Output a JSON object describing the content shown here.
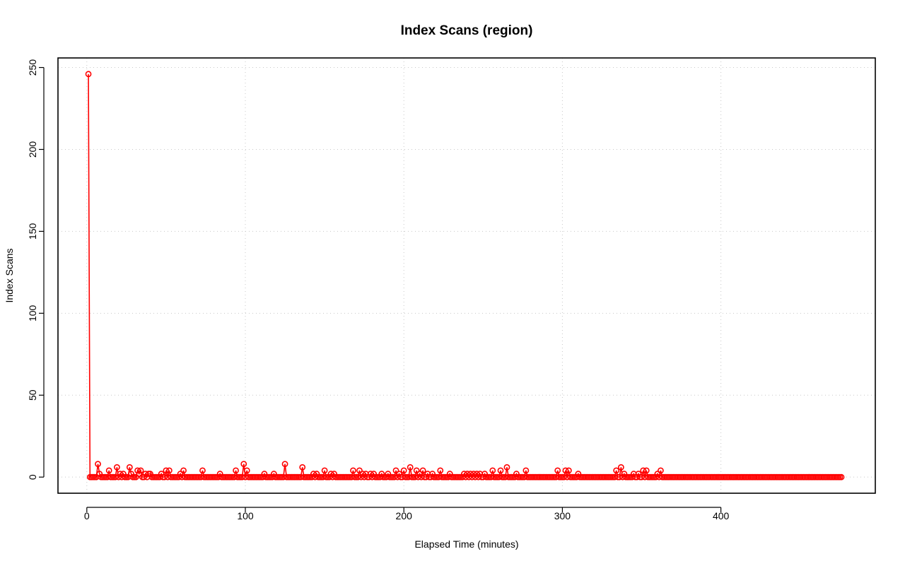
{
  "chart_data": {
    "type": "scatter",
    "title": "Index Scans (region)",
    "xlabel": "Elapsed Time (minutes)",
    "ylabel": "Index Scans",
    "xlim": [
      -18.2,
      497.4
    ],
    "ylim": [
      -9.84,
      255.84
    ],
    "xticks": [
      0,
      100,
      200,
      300,
      400
    ],
    "yticks": [
      0,
      50,
      100,
      150,
      200,
      250
    ],
    "grid": true,
    "color": "#ff0000",
    "series": [
      {
        "style": "points-and-line",
        "x_start": 1,
        "x_end": 476,
        "x_step": 1,
        "baseline": 0,
        "points": [
          [
            1,
            246
          ],
          [
            7,
            8
          ],
          [
            8,
            2
          ],
          [
            14,
            4
          ],
          [
            19,
            6
          ],
          [
            21,
            2
          ],
          [
            23,
            2
          ],
          [
            27,
            6
          ],
          [
            28,
            2
          ],
          [
            32,
            4
          ],
          [
            33,
            2
          ],
          [
            34,
            4
          ],
          [
            37,
            2
          ],
          [
            39,
            2
          ],
          [
            40,
            2
          ],
          [
            47,
            2
          ],
          [
            50,
            4
          ],
          [
            52,
            4
          ],
          [
            59,
            2
          ],
          [
            61,
            4
          ],
          [
            73,
            4
          ],
          [
            84,
            2
          ],
          [
            94,
            4
          ],
          [
            99,
            8
          ],
          [
            101,
            4
          ],
          [
            112,
            2
          ],
          [
            118,
            2
          ],
          [
            125,
            8
          ],
          [
            136,
            6
          ],
          [
            143,
            2
          ],
          [
            145,
            2
          ],
          [
            150,
            4
          ],
          [
            154,
            2
          ],
          [
            156,
            2
          ],
          [
            168,
            4
          ],
          [
            172,
            4
          ],
          [
            174,
            2
          ],
          [
            176,
            2
          ],
          [
            179,
            2
          ],
          [
            181,
            2
          ],
          [
            186,
            2
          ],
          [
            190,
            2
          ],
          [
            195,
            4
          ],
          [
            197,
            2
          ],
          [
            200,
            4
          ],
          [
            204,
            6
          ],
          [
            208,
            4
          ],
          [
            210,
            2
          ],
          [
            212,
            4
          ],
          [
            215,
            2
          ],
          [
            218,
            2
          ],
          [
            223,
            4
          ],
          [
            229,
            2
          ],
          [
            238,
            2
          ],
          [
            240,
            2
          ],
          [
            242,
            2
          ],
          [
            244,
            2
          ],
          [
            246,
            2
          ],
          [
            248,
            2
          ],
          [
            251,
            2
          ],
          [
            256,
            4
          ],
          [
            261,
            4
          ],
          [
            265,
            6
          ],
          [
            271,
            2
          ],
          [
            277,
            4
          ],
          [
            297,
            4
          ],
          [
            302,
            4
          ],
          [
            304,
            4
          ],
          [
            310,
            2
          ],
          [
            334,
            4
          ],
          [
            337,
            6
          ],
          [
            339,
            2
          ],
          [
            345,
            2
          ],
          [
            348,
            2
          ],
          [
            351,
            4
          ],
          [
            353,
            4
          ],
          [
            360,
            2
          ],
          [
            362,
            4
          ]
        ]
      }
    ]
  }
}
